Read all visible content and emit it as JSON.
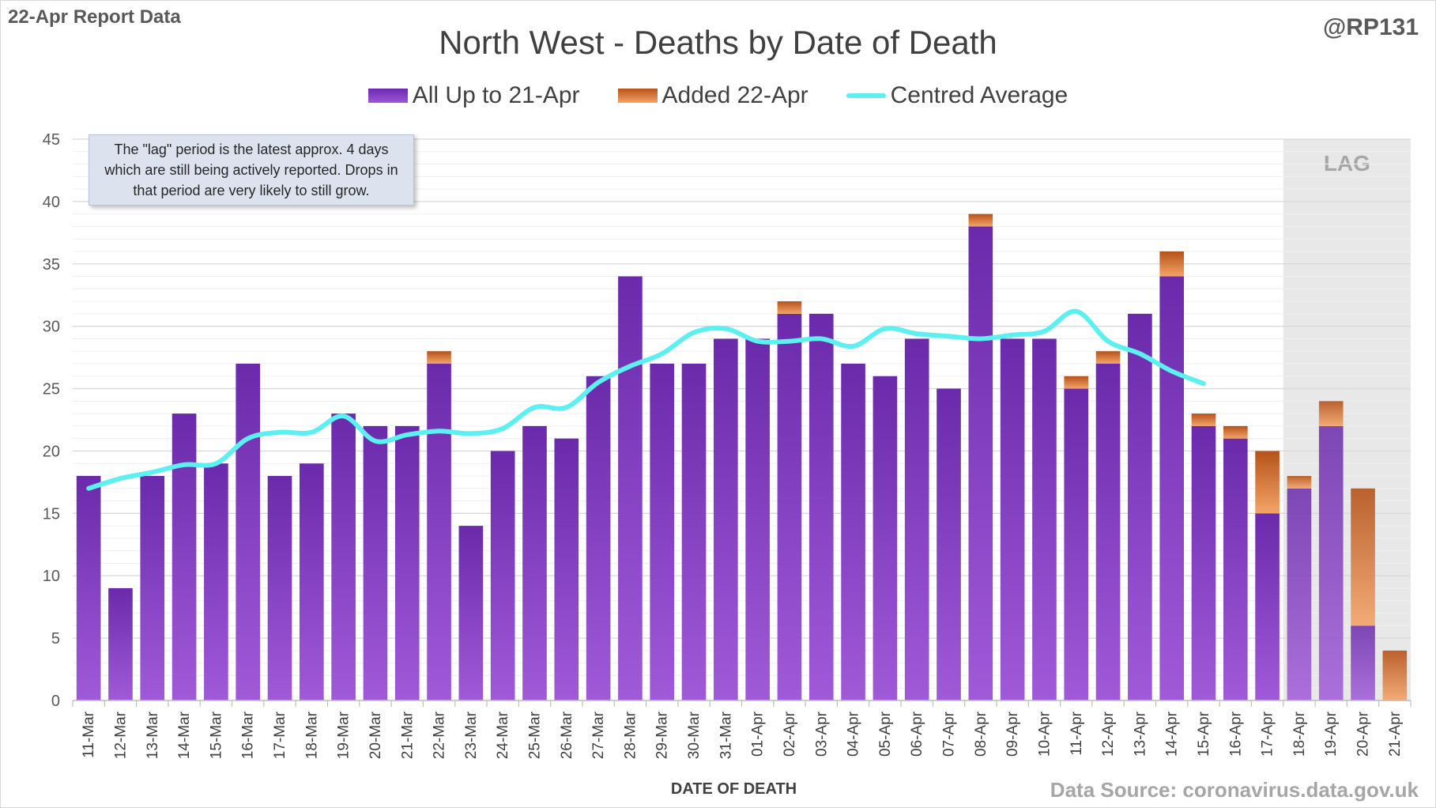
{
  "header": {
    "report_label": "22-Apr Report Data",
    "handle": "@RP131",
    "title": "North West - Deaths by Date of Death"
  },
  "legend": {
    "all_label": "All Up to 21-Apr",
    "added_label": "Added 22-Apr",
    "avg_label": "Centred Average"
  },
  "note": "The \"lag\" period is the latest approx. 4 days which are still being actively reported.  Drops in that period are very likely to still grow.",
  "source": "Data Source: coronavirus.data.gov.uk",
  "colors": {
    "all": "#7a35c2",
    "added": "#d9722e",
    "average": "#5cf0f0",
    "lag_band": "#e8e8e8",
    "grid": "#d9d9d9"
  },
  "chart_data": {
    "type": "bar",
    "stacked": true,
    "xlabel": "DATE OF DEATH",
    "ylabel": "",
    "ylim": [
      0,
      45
    ],
    "yticks": [
      0,
      5,
      10,
      15,
      20,
      25,
      30,
      35,
      40,
      45
    ],
    "lag_label": "LAG",
    "lag_start": "18-Apr",
    "lag_end": "21-Apr",
    "categories": [
      "11-Mar",
      "12-Mar",
      "13-Mar",
      "14-Mar",
      "15-Mar",
      "16-Mar",
      "17-Mar",
      "18-Mar",
      "19-Mar",
      "20-Mar",
      "21-Mar",
      "22-Mar",
      "23-Mar",
      "24-Mar",
      "25-Mar",
      "26-Mar",
      "27-Mar",
      "28-Mar",
      "29-Mar",
      "30-Mar",
      "31-Mar",
      "01-Apr",
      "02-Apr",
      "03-Apr",
      "04-Apr",
      "05-Apr",
      "06-Apr",
      "07-Apr",
      "08-Apr",
      "09-Apr",
      "10-Apr",
      "11-Apr",
      "12-Apr",
      "13-Apr",
      "14-Apr",
      "15-Apr",
      "16-Apr",
      "17-Apr",
      "18-Apr",
      "19-Apr",
      "20-Apr",
      "21-Apr"
    ],
    "series": [
      {
        "name": "All Up to 21-Apr",
        "values": [
          18,
          9,
          18,
          23,
          19,
          27,
          18,
          19,
          23,
          22,
          22,
          27,
          14,
          20,
          22,
          21,
          26,
          34,
          27,
          27,
          29,
          29,
          31,
          31,
          27,
          26,
          29,
          25,
          38,
          29,
          29,
          25,
          27,
          31,
          34,
          22,
          21,
          15,
          17,
          22,
          6,
          0
        ]
      },
      {
        "name": "Added 22-Apr",
        "values": [
          0,
          0,
          0,
          0,
          0,
          0,
          0,
          0,
          0,
          0,
          0,
          1,
          0,
          0,
          0,
          0,
          0,
          0,
          0,
          0,
          0,
          0,
          1,
          0,
          0,
          0,
          0,
          0,
          1,
          0,
          0,
          1,
          1,
          0,
          2,
          1,
          1,
          5,
          1,
          2,
          11,
          4
        ]
      },
      {
        "name": "Centred Average",
        "type": "line",
        "values": [
          17,
          17.8,
          18.3,
          18.9,
          19,
          21,
          21.5,
          21.5,
          22.8,
          20.8,
          21.3,
          21.6,
          21.4,
          21.8,
          23.5,
          23.5,
          25.5,
          26.8,
          27.8,
          29.5,
          29.8,
          28.8,
          28.8,
          29,
          28.4,
          29.8,
          29.4,
          29.2,
          29,
          29.3,
          29.6,
          31.2,
          28.8,
          27.8,
          26.4,
          25.4,
          null,
          null,
          null,
          null,
          null,
          null
        ]
      }
    ]
  }
}
